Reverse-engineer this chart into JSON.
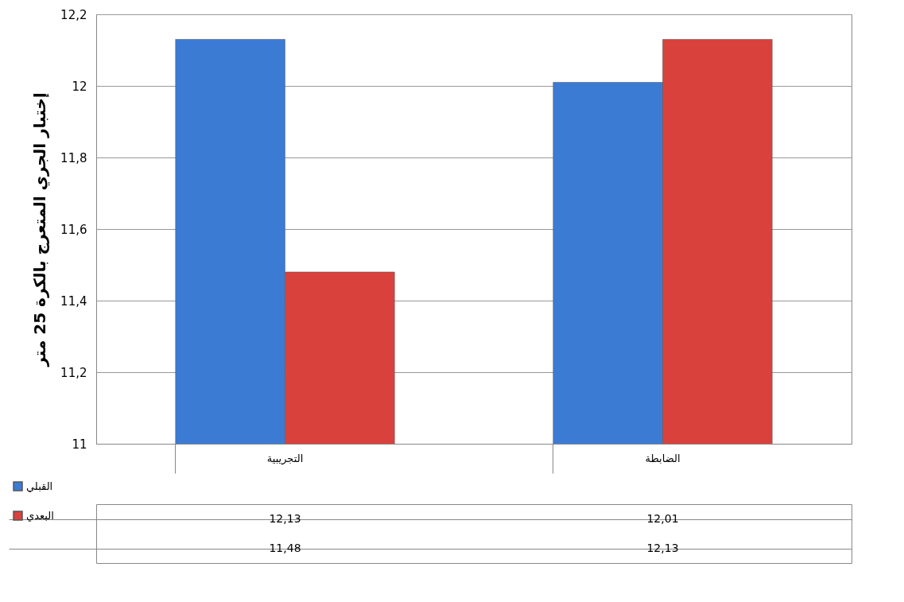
{
  "chart_data": {
    "type": "bar",
    "ylabel": "إختبار الجري المتعرج بالكرة 25 متر",
    "categories": [
      "التجريبية",
      "الضابطة"
    ],
    "series": [
      {
        "name": "القبلي",
        "color": "#3c7bd4",
        "values": [
          12.13,
          12.01
        ],
        "value_labels": [
          "12,13",
          "12,01"
        ]
      },
      {
        "name": "البعدي",
        "color": "#d9413d",
        "values": [
          11.48,
          12.13
        ],
        "value_labels": [
          "11,48",
          "12,13"
        ]
      }
    ],
    "ylim": [
      11,
      12.2
    ],
    "yticks": [
      11,
      {
        "value": 11.2,
        "label": "11,2"
      },
      {
        "value": 11.4,
        "label": "11,4"
      },
      {
        "value": 11.6,
        "label": "11,6"
      },
      {
        "value": 11.8,
        "label": "11,8"
      },
      12,
      {
        "value": 12.2,
        "label": "12,2"
      }
    ],
    "grid": "y",
    "legend": "bottom left"
  }
}
